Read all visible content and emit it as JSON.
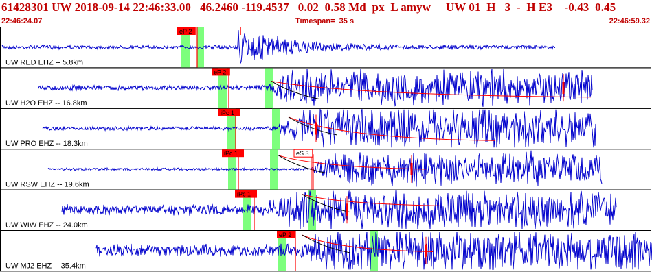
{
  "header": {
    "title": "61428301 UW 2018-09-14 22:46:33.00   46.2460 -119.4537   0.02  0.58 Md  px  L amyw     UW 01  H   3  -  H E3    -0.43  0.45",
    "start_time": "22:46:24.07",
    "timespan": "Timespan=  35 s",
    "end_time": "22:46:59.32"
  },
  "colors": {
    "title": "#c00000",
    "waveform": "#0000cc",
    "pick": "#ff0000",
    "window": "#7dff7d",
    "decay": "#000000"
  },
  "traces": [
    {
      "label": "UW RED EHZ -- 5.8km",
      "pick": "eP 2"
    },
    {
      "label": "UW H2O EHZ -- 16.8km",
      "pick": "eP 2"
    },
    {
      "label": "UW PRO EHZ -- 18.3km",
      "pick": "iPc 1"
    },
    {
      "label": "UW RSW EHZ -- 19.6km",
      "pick": "iPc 1",
      "pick2": "eS 3"
    },
    {
      "label": "UW WIW EHZ -- 24.0km",
      "pick": "iPc 1"
    },
    {
      "label": "UW MJ2 EHZ -- 35.4km",
      "pick": "eP 2"
    }
  ]
}
